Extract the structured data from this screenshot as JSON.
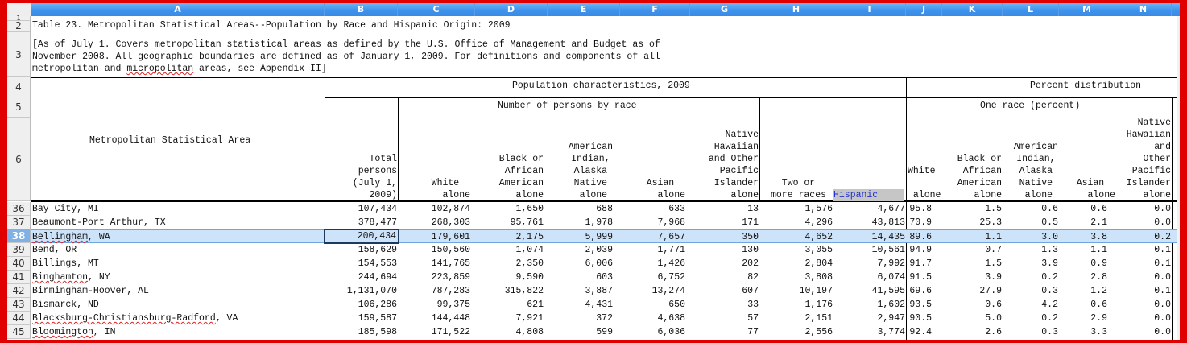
{
  "spreadsheet": {
    "columns": [
      "A",
      "B",
      "C",
      "D",
      "E",
      "F",
      "G",
      "H",
      "I",
      "J",
      "K",
      "L",
      "M",
      "N"
    ],
    "selected_cell": "B38",
    "selected_row": 38
  },
  "header_rows": {
    "row1_label": "1",
    "row2_label": "2",
    "row3_label": "3",
    "row4_label": "4",
    "row5_label": "5",
    "row6_label": "6",
    "title": "Table 23. Metropolitan Statistical Areas--Population by Race and Hispanic Origin: 2009",
    "note_line1": "[As of July 1. Covers metropolitan statistical areas as defined by the U.S. Office of Management and Budget as of",
    "note_line2": "November 2008. All geographic boundaries are defined as of January 1, 2009. For definitions and components of all",
    "note_line3": "metropolitan and micropolitan areas, see Appendix II]",
    "population_characteristics": "Population characteristics, 2009",
    "number_by_race": "Number of persons by race",
    "percent_distribution": "Percent distribution",
    "one_race_percent": "One race (percent)",
    "msa_label": "Metropolitan Statistical Area",
    "col_total": "Total\npersons\n(July 1,\n2009)",
    "col_white": "White\n  alone",
    "col_black": "Black or\nAfrican\nAmerican\n  alone",
    "col_aian": "American\nIndian,\nAlaska\nNative\n alone",
    "col_asian": "Asian\n  alone",
    "col_nhpi": "Native\nHawaiian\nand Other\nPacific\nIslander\nalone",
    "col_two_or_more": "Two or\nmore races",
    "col_hispanic": "Hispanic",
    "pct_white": "White\n\n alone",
    "pct_black": "Black or\nAfrican\nAmerican\n  alone",
    "pct_aian": "American\nIndian,\nAlaska\nNative\n alone",
    "pct_asian": "Asian\n  alone",
    "pct_nhpi": "Native\nHawaiian\nand\nOther\nPacific\nIslander\nalone"
  },
  "rows": [
    {
      "num": "36",
      "area": "Bay City, MI",
      "total": "107,434",
      "white": "102,874",
      "black": "1,650",
      "aian": "688",
      "asian": "633",
      "nhpi": "13",
      "two": "1,576",
      "hisp": "4,677",
      "p_white": "95.8",
      "p_black": "1.5",
      "p_aian": "0.6",
      "p_asian": "0.6",
      "p_nhpi": "0.0"
    },
    {
      "num": "37",
      "area": "Beaumont-Port Arthur, TX",
      "total": "378,477",
      "white": "268,303",
      "black": "95,761",
      "aian": "1,978",
      "asian": "7,968",
      "nhpi": "171",
      "two": "4,296",
      "hisp": "43,813",
      "p_white": "70.9",
      "p_black": "25.3",
      "p_aian": "0.5",
      "p_asian": "2.1",
      "p_nhpi": "0.0"
    },
    {
      "num": "38",
      "area": "Bellingham, WA",
      "total": "200,434",
      "white": "179,601",
      "black": "2,175",
      "aian": "5,999",
      "asian": "7,657",
      "nhpi": "350",
      "two": "4,652",
      "hisp": "14,435",
      "p_white": "89.6",
      "p_black": "1.1",
      "p_aian": "3.0",
      "p_asian": "3.8",
      "p_nhpi": "0.2"
    },
    {
      "num": "39",
      "area": "Bend, OR",
      "total": "158,629",
      "white": "150,560",
      "black": "1,074",
      "aian": "2,039",
      "asian": "1,771",
      "nhpi": "130",
      "two": "3,055",
      "hisp": "10,561",
      "p_white": "94.9",
      "p_black": "0.7",
      "p_aian": "1.3",
      "p_asian": "1.1",
      "p_nhpi": "0.1"
    },
    {
      "num": "40",
      "area": "Billings, MT",
      "total": "154,553",
      "white": "141,765",
      "black": "2,350",
      "aian": "6,006",
      "asian": "1,426",
      "nhpi": "202",
      "two": "2,804",
      "hisp": "7,992",
      "p_white": "91.7",
      "p_black": "1.5",
      "p_aian": "3.9",
      "p_asian": "0.9",
      "p_nhpi": "0.1"
    },
    {
      "num": "41",
      "area": "Binghamton, NY",
      "total": "244,694",
      "white": "223,859",
      "black": "9,590",
      "aian": "603",
      "asian": "6,752",
      "nhpi": "82",
      "two": "3,808",
      "hisp": "6,074",
      "p_white": "91.5",
      "p_black": "3.9",
      "p_aian": "0.2",
      "p_asian": "2.8",
      "p_nhpi": "0.0"
    },
    {
      "num": "42",
      "area": "Birmingham-Hoover, AL",
      "total": "1,131,070",
      "white": "787,283",
      "black": "315,822",
      "aian": "3,887",
      "asian": "13,274",
      "nhpi": "607",
      "two": "10,197",
      "hisp": "41,595",
      "p_white": "69.6",
      "p_black": "27.9",
      "p_aian": "0.3",
      "p_asian": "1.2",
      "p_nhpi": "0.1"
    },
    {
      "num": "43",
      "area": "Bismarck, ND",
      "total": "106,286",
      "white": "99,375",
      "black": "621",
      "aian": "4,431",
      "asian": "650",
      "nhpi": "33",
      "two": "1,176",
      "hisp": "1,602",
      "p_white": "93.5",
      "p_black": "0.6",
      "p_aian": "4.2",
      "p_asian": "0.6",
      "p_nhpi": "0.0"
    },
    {
      "num": "44",
      "area": "Blacksburg-Christiansburg-Radford, VA",
      "total": "159,587",
      "white": "144,448",
      "black": "7,921",
      "aian": "372",
      "asian": "4,638",
      "nhpi": "57",
      "two": "2,151",
      "hisp": "2,947",
      "p_white": "90.5",
      "p_black": "5.0",
      "p_aian": "0.2",
      "p_asian": "2.9",
      "p_nhpi": "0.0"
    },
    {
      "num": "45",
      "area": "Bloomington, IN",
      "total": "185,598",
      "white": "171,522",
      "black": "4,808",
      "aian": "599",
      "asian": "6,036",
      "nhpi": "77",
      "two": "2,556",
      "hisp": "3,774",
      "p_white": "92.4",
      "p_black": "2.6",
      "p_aian": "0.3",
      "p_asian": "3.3",
      "p_nhpi": "0.0"
    }
  ]
}
